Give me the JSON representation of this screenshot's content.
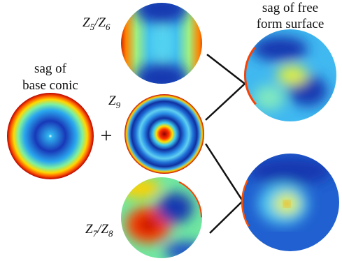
{
  "nodes": [
    {
      "label": [
        "sag of",
        "base conic"
      ]
    },
    {
      "label": [
        {
          "text": "Z",
          "sub": "5"
        },
        {
          "text": "/Z",
          "sub": "6"
        }
      ]
    },
    {
      "label": [
        {
          "text": "Z",
          "sub": "9"
        }
      ]
    },
    {
      "label": [
        {
          "text": "Z",
          "sub": "7"
        },
        {
          "text": "/Z",
          "sub": "8"
        }
      ]
    },
    {
      "label": [
        "sag of free",
        "form surface"
      ]
    }
  ],
  "operator": "+"
}
